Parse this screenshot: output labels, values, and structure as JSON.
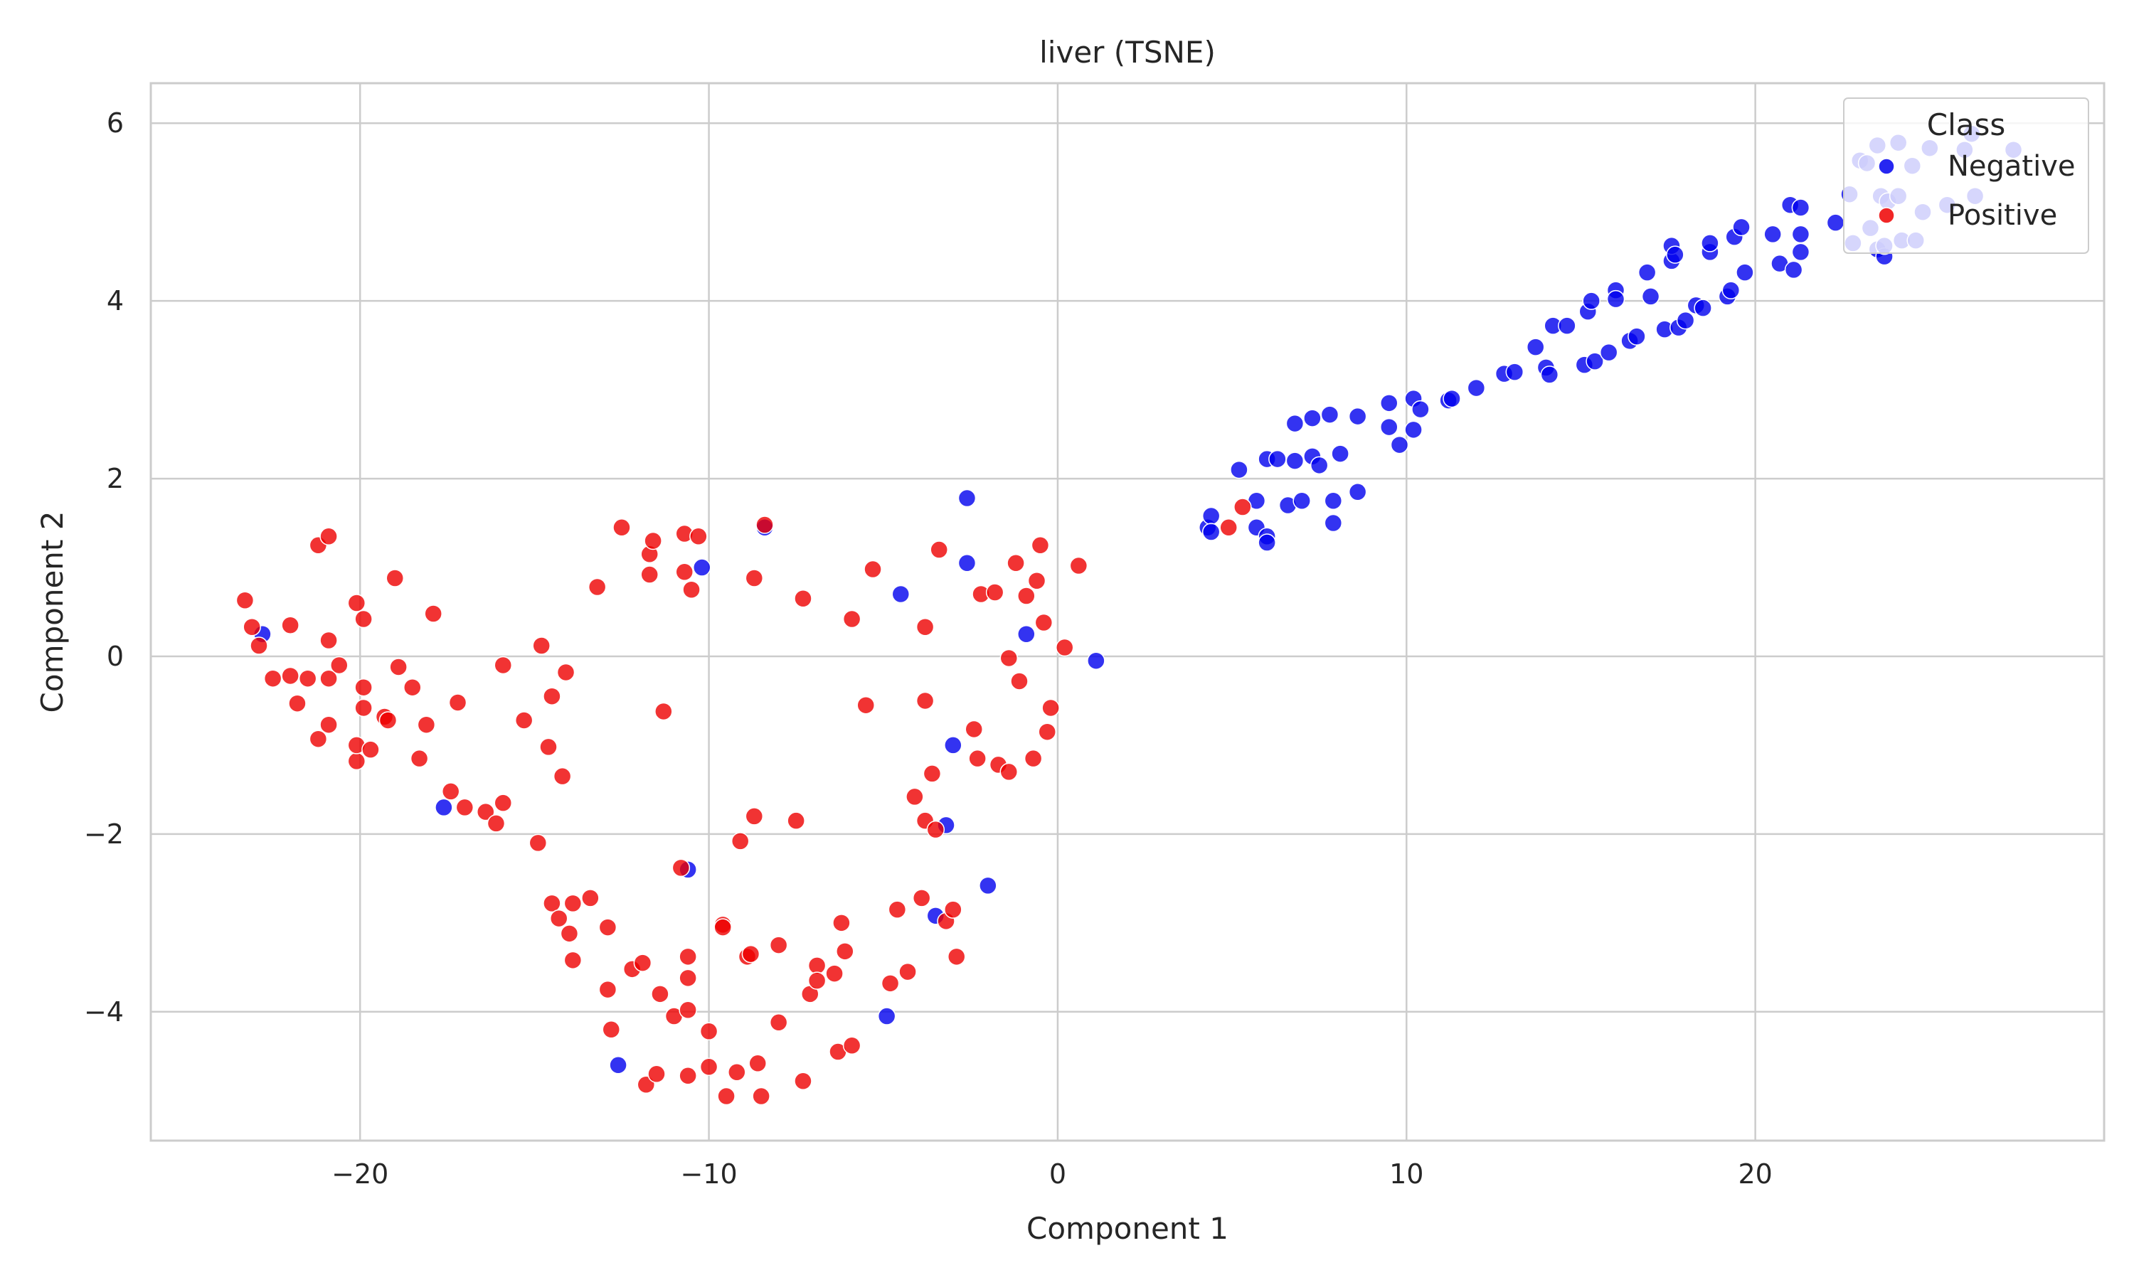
{
  "chart_data": {
    "type": "scatter",
    "title": "liver (TSNE)",
    "xlabel": "Component 1",
    "ylabel": "Component 2",
    "xlim": [
      -26,
      30
    ],
    "ylim": [
      -5.45,
      6.45
    ],
    "xticks": [
      -20,
      -10,
      0,
      10,
      20
    ],
    "yticks": [
      -4,
      -2,
      0,
      2,
      4,
      6
    ],
    "xtick_labels": [
      "−20",
      "−10",
      "0",
      "10",
      "20"
    ],
    "ytick_labels": [
      "−4",
      "−2",
      "0",
      "2",
      "4",
      "6"
    ],
    "grid": true,
    "legend": {
      "title": "Class",
      "placement": "top-right",
      "entries": [
        "Negative",
        "Positive"
      ]
    },
    "colors": {
      "Negative": "#0000ee",
      "Positive": "#ee0000"
    },
    "series": [
      {
        "name": "Negative",
        "color": "#0000ee",
        "points": [
          [
            -22.8,
            0.25
          ],
          [
            -17.6,
            -1.7
          ],
          [
            -10.2,
            1.0
          ],
          [
            -8.4,
            1.45
          ],
          [
            -10.6,
            -2.4
          ],
          [
            -12.6,
            -4.6
          ],
          [
            -2.6,
            1.78
          ],
          [
            -2.6,
            1.05
          ],
          [
            -4.5,
            0.7
          ],
          [
            -0.9,
            0.25
          ],
          [
            1.1,
            -0.05
          ],
          [
            -3.0,
            -1.0
          ],
          [
            -3.2,
            -1.9
          ],
          [
            -3.5,
            -2.92
          ],
          [
            -2.0,
            -2.58
          ],
          [
            -4.9,
            -4.05
          ],
          [
            4.3,
            1.45
          ],
          [
            4.4,
            1.58
          ],
          [
            4.4,
            1.4
          ],
          [
            5.2,
            2.1
          ],
          [
            5.7,
            1.75
          ],
          [
            5.7,
            1.45
          ],
          [
            6.0,
            1.35
          ],
          [
            6.0,
            1.28
          ],
          [
            6.0,
            2.22
          ],
          [
            6.3,
            2.22
          ],
          [
            6.6,
            1.7
          ],
          [
            6.8,
            2.62
          ],
          [
            6.8,
            2.2
          ],
          [
            7.0,
            1.75
          ],
          [
            7.3,
            2.68
          ],
          [
            7.3,
            2.25
          ],
          [
            7.5,
            2.15
          ],
          [
            7.8,
            2.72
          ],
          [
            7.9,
            1.75
          ],
          [
            7.9,
            1.5
          ],
          [
            8.1,
            2.28
          ],
          [
            8.6,
            2.7
          ],
          [
            8.6,
            1.85
          ],
          [
            9.5,
            2.85
          ],
          [
            9.5,
            2.58
          ],
          [
            9.8,
            2.38
          ],
          [
            10.2,
            2.9
          ],
          [
            10.2,
            2.55
          ],
          [
            10.4,
            2.78
          ],
          [
            11.2,
            2.88
          ],
          [
            11.3,
            2.9
          ],
          [
            12.0,
            3.02
          ],
          [
            12.8,
            3.18
          ],
          [
            13.1,
            3.2
          ],
          [
            13.7,
            3.48
          ],
          [
            14.0,
            3.25
          ],
          [
            14.1,
            3.17
          ],
          [
            14.2,
            3.72
          ],
          [
            14.6,
            3.72
          ],
          [
            15.1,
            3.28
          ],
          [
            15.2,
            3.88
          ],
          [
            15.3,
            4.0
          ],
          [
            15.4,
            3.32
          ],
          [
            15.8,
            3.42
          ],
          [
            16.0,
            4.12
          ],
          [
            16.0,
            4.02
          ],
          [
            16.4,
            3.55
          ],
          [
            16.6,
            3.6
          ],
          [
            16.9,
            4.32
          ],
          [
            17.0,
            4.05
          ],
          [
            17.4,
            3.68
          ],
          [
            17.6,
            4.45
          ],
          [
            17.6,
            4.62
          ],
          [
            17.7,
            4.52
          ],
          [
            17.8,
            3.7
          ],
          [
            18.0,
            3.78
          ],
          [
            18.3,
            3.95
          ],
          [
            18.5,
            3.92
          ],
          [
            18.7,
            4.55
          ],
          [
            18.7,
            4.65
          ],
          [
            19.2,
            4.05
          ],
          [
            19.3,
            4.12
          ],
          [
            19.4,
            4.72
          ],
          [
            19.6,
            4.83
          ],
          [
            19.7,
            4.32
          ],
          [
            20.5,
            4.75
          ],
          [
            20.7,
            4.42
          ],
          [
            21.0,
            5.08
          ],
          [
            21.1,
            4.35
          ],
          [
            21.3,
            4.75
          ],
          [
            21.3,
            4.55
          ],
          [
            21.3,
            5.05
          ],
          [
            22.3,
            4.88
          ],
          [
            22.7,
            5.2
          ],
          [
            22.8,
            4.65
          ],
          [
            23.0,
            5.58
          ],
          [
            23.2,
            5.55
          ],
          [
            23.3,
            4.82
          ],
          [
            23.5,
            4.58
          ],
          [
            23.5,
            5.75
          ],
          [
            23.6,
            5.18
          ],
          [
            23.8,
            5.12
          ],
          [
            23.7,
            4.5
          ],
          [
            23.7,
            4.62
          ],
          [
            24.1,
            5.78
          ],
          [
            24.1,
            5.18
          ],
          [
            24.2,
            4.68
          ],
          [
            24.5,
            5.52
          ],
          [
            24.6,
            4.68
          ],
          [
            24.8,
            5.0
          ],
          [
            25.0,
            5.72
          ],
          [
            25.5,
            5.08
          ],
          [
            26.0,
            5.7
          ],
          [
            26.2,
            5.88
          ],
          [
            26.3,
            5.18
          ],
          [
            27.4,
            5.7
          ]
        ]
      },
      {
        "name": "Positive",
        "color": "#ee0000",
        "points": [
          [
            -23.3,
            0.63
          ],
          [
            -23.1,
            0.33
          ],
          [
            -22.9,
            0.12
          ],
          [
            -22.5,
            -0.25
          ],
          [
            -22.0,
            -0.22
          ],
          [
            -22.0,
            0.35
          ],
          [
            -21.8,
            -0.53
          ],
          [
            -21.5,
            -0.25
          ],
          [
            -21.2,
            -0.93
          ],
          [
            -21.2,
            1.25
          ],
          [
            -20.9,
            1.35
          ],
          [
            -20.9,
            -0.25
          ],
          [
            -20.9,
            0.18
          ],
          [
            -20.9,
            -0.77
          ],
          [
            -20.6,
            -0.1
          ],
          [
            -20.1,
            -1.18
          ],
          [
            -20.1,
            -1.0
          ],
          [
            -20.1,
            0.6
          ],
          [
            -19.9,
            0.42
          ],
          [
            -19.9,
            -0.35
          ],
          [
            -19.9,
            -0.58
          ],
          [
            -19.7,
            -1.05
          ],
          [
            -19.3,
            -0.68
          ],
          [
            -19.2,
            -0.72
          ],
          [
            -19.0,
            0.88
          ],
          [
            -18.9,
            -0.12
          ],
          [
            -18.5,
            -0.35
          ],
          [
            -18.3,
            -1.15
          ],
          [
            -18.1,
            -0.77
          ],
          [
            -17.9,
            0.48
          ],
          [
            -17.4,
            -1.52
          ],
          [
            -17.2,
            -0.52
          ],
          [
            -17.0,
            -1.7
          ],
          [
            -16.4,
            -1.75
          ],
          [
            -16.1,
            -1.88
          ],
          [
            -15.9,
            -1.65
          ],
          [
            -15.9,
            -0.1
          ],
          [
            -15.3,
            -0.72
          ],
          [
            -14.9,
            -2.1
          ],
          [
            -14.8,
            0.12
          ],
          [
            -14.6,
            -1.02
          ],
          [
            -14.5,
            -0.45
          ],
          [
            -14.5,
            -2.78
          ],
          [
            -14.3,
            -2.95
          ],
          [
            -14.2,
            -1.35
          ],
          [
            -14.1,
            -0.18
          ],
          [
            -14.0,
            -3.12
          ],
          [
            -13.9,
            -3.42
          ],
          [
            -13.9,
            -2.78
          ],
          [
            -13.4,
            -2.72
          ],
          [
            -13.2,
            0.78
          ],
          [
            -12.9,
            -3.05
          ],
          [
            -12.9,
            -3.75
          ],
          [
            -12.8,
            -4.2
          ],
          [
            -12.5,
            1.45
          ],
          [
            -12.2,
            -3.52
          ],
          [
            -11.9,
            -3.45
          ],
          [
            -11.8,
            -4.82
          ],
          [
            -11.7,
            1.15
          ],
          [
            -11.7,
            0.92
          ],
          [
            -11.6,
            1.3
          ],
          [
            -11.5,
            -4.7
          ],
          [
            -11.4,
            -3.8
          ],
          [
            -11.3,
            -0.62
          ],
          [
            -11.0,
            -4.05
          ],
          [
            -10.8,
            -2.38
          ],
          [
            -10.7,
            0.95
          ],
          [
            -10.7,
            1.38
          ],
          [
            -10.6,
            -3.38
          ],
          [
            -10.6,
            -3.62
          ],
          [
            -10.6,
            -3.98
          ],
          [
            -10.6,
            -4.72
          ],
          [
            -10.5,
            0.75
          ],
          [
            -10.3,
            1.35
          ],
          [
            -10.0,
            -4.22
          ],
          [
            -10.0,
            -4.62
          ],
          [
            -9.6,
            -3.02
          ],
          [
            -9.6,
            -3.05
          ],
          [
            -9.5,
            -4.95
          ],
          [
            -9.2,
            -4.68
          ],
          [
            -9.1,
            -2.08
          ],
          [
            -8.9,
            -3.38
          ],
          [
            -8.8,
            -3.35
          ],
          [
            -8.7,
            0.88
          ],
          [
            -8.7,
            -1.8
          ],
          [
            -8.6,
            -4.58
          ],
          [
            -8.5,
            -4.95
          ],
          [
            -8.4,
            1.48
          ],
          [
            -8.0,
            -3.25
          ],
          [
            -8.0,
            -4.12
          ],
          [
            -7.5,
            -1.85
          ],
          [
            -7.3,
            0.65
          ],
          [
            -7.3,
            -4.78
          ],
          [
            -7.1,
            -3.8
          ],
          [
            -6.9,
            -3.48
          ],
          [
            -6.9,
            -3.65
          ],
          [
            -6.4,
            -3.57
          ],
          [
            -6.3,
            -4.45
          ],
          [
            -6.2,
            -3.0
          ],
          [
            -6.1,
            -3.32
          ],
          [
            -5.9,
            -4.38
          ],
          [
            -5.9,
            0.42
          ],
          [
            -5.5,
            -0.55
          ],
          [
            -5.3,
            0.98
          ],
          [
            -4.8,
            -3.68
          ],
          [
            -4.6,
            -2.85
          ],
          [
            -4.3,
            -3.55
          ],
          [
            -4.1,
            -1.58
          ],
          [
            -3.9,
            -2.72
          ],
          [
            -3.8,
            0.33
          ],
          [
            -3.8,
            -0.5
          ],
          [
            -3.8,
            -1.85
          ],
          [
            -3.6,
            -1.32
          ],
          [
            -3.5,
            -1.95
          ],
          [
            -3.4,
            1.2
          ],
          [
            -3.2,
            -2.98
          ],
          [
            -3.0,
            -2.85
          ],
          [
            -2.9,
            -3.38
          ],
          [
            -2.4,
            -0.82
          ],
          [
            -2.3,
            -1.15
          ],
          [
            -2.2,
            0.7
          ],
          [
            -1.8,
            0.72
          ],
          [
            -1.7,
            -1.22
          ],
          [
            -1.4,
            -1.3
          ],
          [
            -1.4,
            -0.02
          ],
          [
            -1.2,
            1.05
          ],
          [
            -1.1,
            -0.28
          ],
          [
            -0.9,
            0.68
          ],
          [
            -0.7,
            -1.15
          ],
          [
            -0.6,
            0.85
          ],
          [
            -0.5,
            1.25
          ],
          [
            -0.4,
            0.38
          ],
          [
            -0.2,
            -0.58
          ],
          [
            -0.3,
            -0.85
          ],
          [
            0.2,
            0.1
          ],
          [
            0.6,
            1.02
          ],
          [
            4.9,
            1.45
          ],
          [
            5.3,
            1.68
          ]
        ]
      }
    ]
  }
}
